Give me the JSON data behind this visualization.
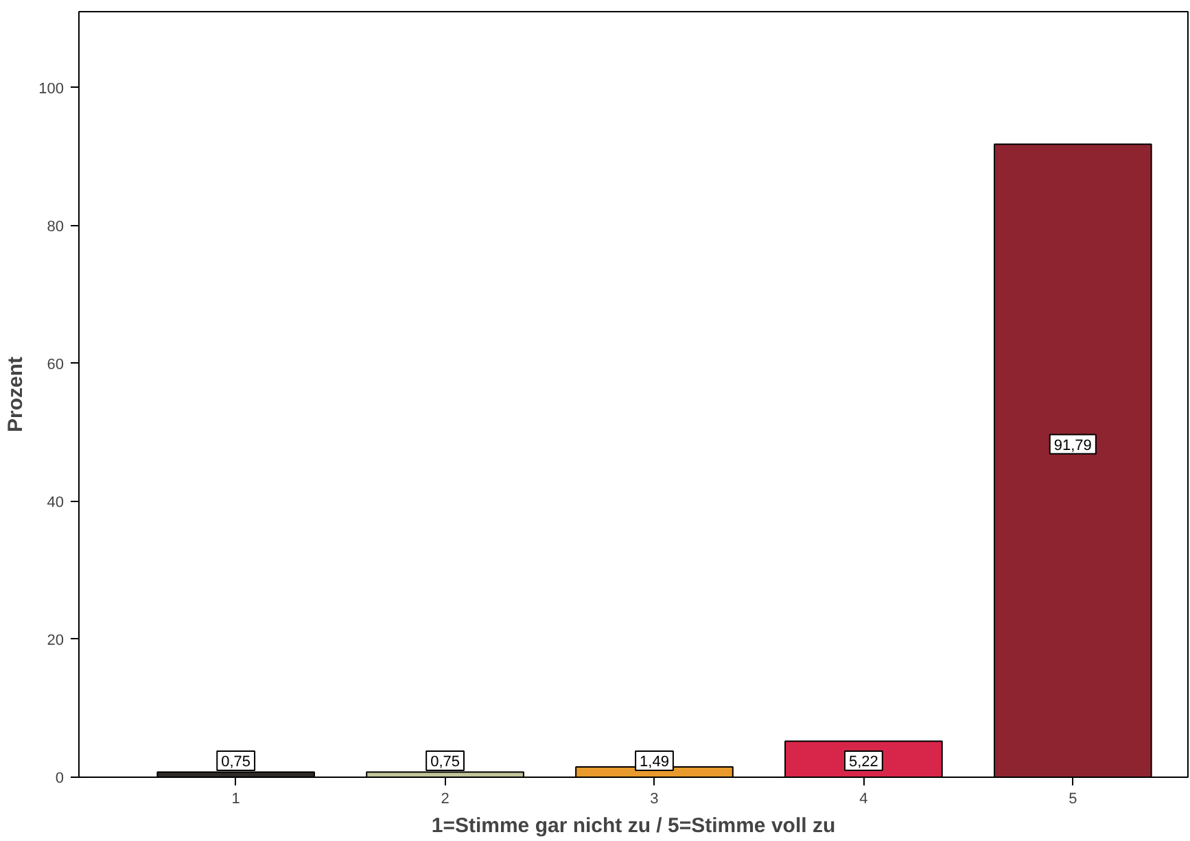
{
  "chart_data": {
    "type": "bar",
    "xlabel": "1=Stimme gar nicht zu / 5=Stimme voll zu",
    "ylabel": "Prozent",
    "categories": [
      "1",
      "2",
      "3",
      "4",
      "5"
    ],
    "values": [
      0.75,
      0.75,
      1.49,
      5.22,
      91.79
    ],
    "colors": [
      "#2e2a28",
      "#c2c49a",
      "#e89a2c",
      "#d8264a",
      "#8e2430"
    ],
    "value_labels": [
      "0,75",
      "0,75",
      "1,49",
      "5,22",
      "91,79"
    ],
    "ylim": [
      0,
      111
    ],
    "yticks": [
      0,
      20,
      40,
      60,
      80,
      100
    ],
    "grid": false
  }
}
